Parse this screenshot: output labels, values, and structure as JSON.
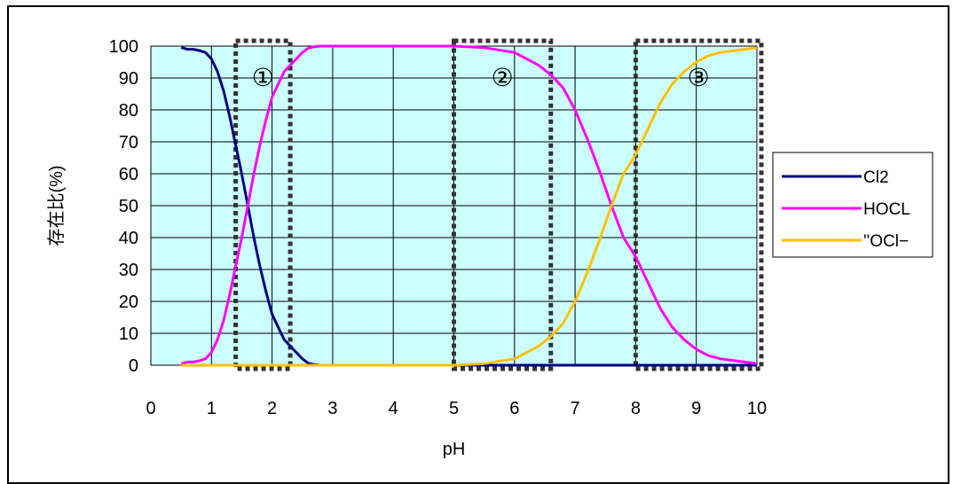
{
  "chart_data": {
    "type": "line",
    "title": "",
    "xlabel": "pH",
    "ylabel": "存在比(%)",
    "xlim": [
      0,
      10
    ],
    "ylim": [
      0,
      100
    ],
    "x_ticks": [
      "0",
      "1",
      "2",
      "3",
      "4",
      "5",
      "6",
      "7",
      "8",
      "9",
      "10"
    ],
    "y_ticks": [
      "0",
      "10",
      "20",
      "30",
      "40",
      "50",
      "60",
      "70",
      "80",
      "90",
      "100"
    ],
    "grid": true,
    "plot_background": "#ccffff",
    "legend_position": "right",
    "series": [
      {
        "name": "Cl2",
        "color": "#000080",
        "x": [
          0.5,
          0.6,
          0.7,
          0.8,
          0.9,
          1.0,
          1.1,
          1.2,
          1.3,
          1.4,
          1.5,
          1.6,
          1.7,
          1.8,
          1.9,
          2.0,
          2.1,
          2.2,
          2.3,
          2.4,
          2.5,
          2.6,
          2.7,
          2.8,
          3.0,
          4.0,
          5.0,
          6.0,
          7.0,
          8.0,
          9.0,
          10.0
        ],
        "y": [
          99.6,
          99,
          99,
          98.6,
          98,
          96,
          92,
          86,
          78,
          69,
          60,
          50,
          40,
          31,
          23,
          16,
          12,
          8,
          6,
          4,
          2,
          0.6,
          0.2,
          0,
          0,
          0,
          0,
          0,
          0,
          0,
          0,
          0
        ]
      },
      {
        "name": "HOCL",
        "color": "#ff00ff",
        "x": [
          0.5,
          0.6,
          0.7,
          0.8,
          0.9,
          1.0,
          1.1,
          1.2,
          1.3,
          1.4,
          1.5,
          1.6,
          1.7,
          1.8,
          1.9,
          2.0,
          2.1,
          2.2,
          2.3,
          2.4,
          2.5,
          2.6,
          2.7,
          2.8,
          3.0,
          4.0,
          5.0,
          5.5,
          6.0,
          6.2,
          6.4,
          6.6,
          6.8,
          7.0,
          7.2,
          7.4,
          7.6,
          7.8,
          8.0,
          8.2,
          8.4,
          8.6,
          8.8,
          9.0,
          9.2,
          9.4,
          9.6,
          9.8,
          10.0
        ],
        "y": [
          0.4,
          1,
          1,
          1.4,
          2,
          4,
          8,
          14,
          22,
          31,
          40,
          50,
          60,
          69,
          77,
          84,
          88,
          92,
          94,
          96,
          98,
          99.4,
          99.8,
          100,
          100,
          100,
          100,
          99.5,
          98,
          96,
          94,
          91,
          87,
          80,
          71,
          61,
          50,
          40,
          34,
          26,
          18,
          12,
          8,
          5,
          3,
          2,
          1.5,
          1,
          0.5
        ]
      },
      {
        "name": "''OCl−",
        "color": "#ffc000",
        "x": [
          0.5,
          1.0,
          2.0,
          3.0,
          4.0,
          5.0,
          5.5,
          6.0,
          6.2,
          6.4,
          6.6,
          6.8,
          7.0,
          7.2,
          7.4,
          7.6,
          7.8,
          8.0,
          8.2,
          8.4,
          8.6,
          8.8,
          9.0,
          9.2,
          9.4,
          9.6,
          9.8,
          10.0
        ],
        "y": [
          0,
          0,
          0,
          0,
          0,
          0,
          0.5,
          2,
          4,
          6,
          9,
          13,
          20,
          29,
          39,
          50,
          60,
          66,
          74,
          82,
          88,
          92,
          95,
          97,
          98,
          98.5,
          99,
          99.5
        ]
      }
    ],
    "annotations": [
      {
        "label": "①",
        "x_range": [
          1.4,
          2.3
        ]
      },
      {
        "label": "②",
        "x_range": [
          5.0,
          6.6
        ]
      },
      {
        "label": "③",
        "x_range": [
          8.0,
          10.1
        ]
      }
    ]
  }
}
